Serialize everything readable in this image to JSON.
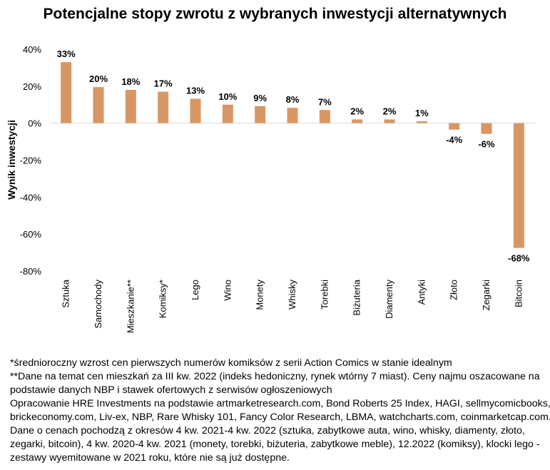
{
  "chart_data": {
    "type": "bar",
    "title": "Potencjalne stopy zwrotu z wybranych inwestycji alternatywnych",
    "xlabel": "",
    "ylabel": "Wynik inwestycji",
    "categories": [
      "Sztuka",
      "Samochody",
      "Mieszkanie**",
      "Komiksy*",
      "Lego",
      "Wino",
      "Monety",
      "Whisky",
      "Torebki",
      "Biżuteria",
      "Diamenty",
      "Antyki",
      "Złoto",
      "Zegarki",
      "Bitcoin"
    ],
    "values": [
      33,
      20,
      18,
      17,
      13,
      10,
      9,
      8,
      7,
      2,
      2,
      1,
      -4,
      -6,
      -68
    ],
    "value_labels": [
      "33%",
      "20%",
      "18%",
      "17%",
      "13%",
      "10%",
      "9%",
      "8%",
      "7%",
      "2%",
      "2%",
      "1%",
      "-4%",
      "-6%",
      "-68%"
    ],
    "value_values": [
      33,
      19.5,
      18,
      17,
      13.2,
      10,
      9.2,
      8.3,
      7.1,
      2,
      2,
      1,
      -3.5,
      -5.8,
      -67.5
    ],
    "ylim": [
      -80,
      40
    ],
    "yticks": [
      40,
      20,
      0,
      -20,
      -40,
      -60,
      -80
    ],
    "ytick_labels": [
      "40%",
      "20%",
      "0%",
      "-20%",
      "-40%",
      "-60%",
      "-80%"
    ],
    "bar_color": "#d79764",
    "grid": false,
    "legend": "none"
  },
  "notes": [
    "*średnioroczny wzrost cen pierwszych numerów komiksów z serii Action Comics w stanie idealnym",
    "**Dane na temat cen mieszkań za III kw. 2022 (indeks hedoniczny, rynek wtórny 7 miast). Ceny najmu oszacowane na",
    "podstawie danych NBP i stawek ofertowych z serwisów ogłoszeniowych",
    "Opracowanie HRE Investments na podstawie artmarketresearch.com, Bond Roberts 25 Index, HAGI, sellmycomicbooks,",
    "brickeconomy.com, Liv-ex, NBP, Rare Whisky 101, Fancy Color Research, LBMA, watchcharts.com, coinmarketcap.com.",
    "Dane o cenach pochodzą z okresów 4 kw. 2021-4 kw. 2022 (sztuka, zabytkowe auta, wino, whisky, diamenty, złoto,",
    "zegarki, bitcoin),  4 kw. 2020-4 kw. 2021 (monety, torebki, biżuteria, zabytkowe meble), 12.2022 (komiksy), klocki lego -",
    "zestawy wyemitowane w 2021 roku, które nie są już dostępne."
  ]
}
